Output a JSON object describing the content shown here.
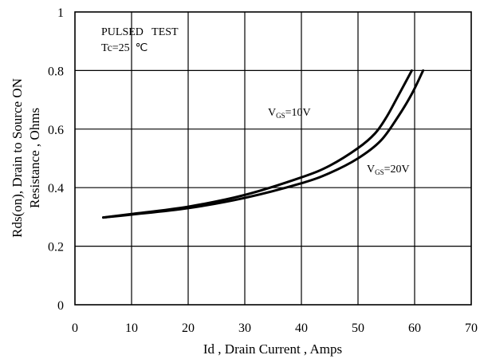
{
  "chart_data": {
    "type": "line",
    "xlabel": "Id , Drain Current , Amps",
    "ylabel_line1": "Rds(on), Drain to Source ON",
    "ylabel_line2": "Resistance , Ohms",
    "xlim": [
      0,
      70
    ],
    "ylim": [
      0,
      1
    ],
    "x_ticks": [
      "0",
      "10",
      "20",
      "30",
      "40",
      "50",
      "60",
      "70"
    ],
    "y_ticks": [
      "0",
      "0.2",
      "0.4",
      "0.6",
      "0.8",
      "1"
    ],
    "grid": true,
    "annotation_line1": "PULSED   TEST",
    "annotation_line2": "Tc=25  ℃",
    "series": [
      {
        "label_main": "V",
        "label_sub": "GS",
        "label_tail": "=10V",
        "points": [
          [
            5,
            0.298
          ],
          [
            10,
            0.31
          ],
          [
            20,
            0.335
          ],
          [
            30,
            0.375
          ],
          [
            40,
            0.435
          ],
          [
            45,
            0.475
          ],
          [
            50,
            0.535
          ],
          [
            53,
            0.585
          ],
          [
            55,
            0.64
          ],
          [
            57,
            0.71
          ],
          [
            59.5,
            0.8
          ]
        ]
      },
      {
        "label_main": "V",
        "label_sub": "GS",
        "label_tail": "=20V",
        "points": [
          [
            5,
            0.298
          ],
          [
            10,
            0.308
          ],
          [
            20,
            0.33
          ],
          [
            30,
            0.365
          ],
          [
            40,
            0.415
          ],
          [
            45,
            0.45
          ],
          [
            50,
            0.5
          ],
          [
            54,
            0.56
          ],
          [
            57,
            0.64
          ],
          [
            59.5,
            0.72
          ],
          [
            61.5,
            0.8
          ]
        ]
      }
    ]
  }
}
